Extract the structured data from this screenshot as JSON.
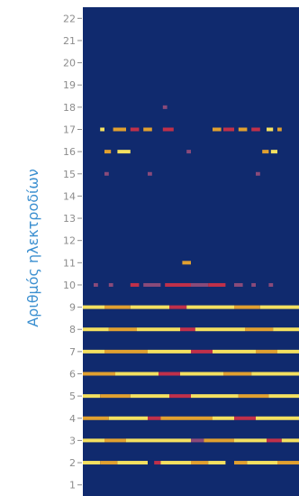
{
  "chart_data": {
    "type": "heatmap",
    "ylabel": "Αριθμός ηλεκτροδίων",
    "xlabel": "",
    "title": "",
    "yticks": [
      1,
      2,
      3,
      4,
      5,
      6,
      7,
      8,
      9,
      10,
      11,
      12,
      13,
      14,
      15,
      16,
      17,
      18,
      19,
      20,
      21,
      22
    ],
    "ylim": [
      0.5,
      22.5
    ],
    "xlim": [
      0,
      1
    ],
    "grid": false,
    "colors": {
      "background": "#102a6e",
      "axis_line": "#8c8c8c",
      "levels": [
        "#3b5aa8",
        "#8a4a7a",
        "#c0304a",
        "#e0a030",
        "#f4e060"
      ]
    },
    "rows": [
      {
        "electrode": 1,
        "segments": []
      },
      {
        "electrode": 2,
        "segments": [
          [
            0.0,
            0.08,
            4
          ],
          [
            0.08,
            0.16,
            3
          ],
          [
            0.16,
            0.3,
            4
          ],
          [
            0.33,
            0.36,
            2
          ],
          [
            0.36,
            0.5,
            4
          ],
          [
            0.5,
            0.58,
            3
          ],
          [
            0.58,
            0.66,
            4
          ],
          [
            0.7,
            0.76,
            3
          ],
          [
            0.76,
            0.9,
            4
          ],
          [
            0.9,
            1.0,
            3
          ]
        ]
      },
      {
        "electrode": 3,
        "segments": [
          [
            0.0,
            0.1,
            4
          ],
          [
            0.1,
            0.2,
            3
          ],
          [
            0.2,
            0.5,
            4
          ],
          [
            0.5,
            0.56,
            1
          ],
          [
            0.56,
            0.7,
            3
          ],
          [
            0.7,
            0.85,
            4
          ],
          [
            0.85,
            0.92,
            2
          ],
          [
            0.92,
            1.0,
            4
          ]
        ]
      },
      {
        "electrode": 4,
        "segments": [
          [
            0.0,
            0.12,
            3
          ],
          [
            0.12,
            0.3,
            4
          ],
          [
            0.3,
            0.36,
            2
          ],
          [
            0.36,
            0.6,
            3
          ],
          [
            0.6,
            0.7,
            4
          ],
          [
            0.7,
            0.8,
            2
          ],
          [
            0.8,
            1.0,
            4
          ]
        ]
      },
      {
        "electrode": 5,
        "segments": [
          [
            0.0,
            0.08,
            4
          ],
          [
            0.08,
            0.22,
            3
          ],
          [
            0.22,
            0.4,
            4
          ],
          [
            0.4,
            0.5,
            2
          ],
          [
            0.5,
            0.72,
            4
          ],
          [
            0.72,
            0.86,
            3
          ],
          [
            0.86,
            1.0,
            4
          ]
        ]
      },
      {
        "electrode": 6,
        "segments": [
          [
            0.0,
            0.15,
            3
          ],
          [
            0.15,
            0.35,
            4
          ],
          [
            0.35,
            0.45,
            2
          ],
          [
            0.45,
            0.65,
            4
          ],
          [
            0.65,
            0.78,
            3
          ],
          [
            0.78,
            1.0,
            4
          ]
        ]
      },
      {
        "electrode": 7,
        "segments": [
          [
            0.0,
            0.1,
            4
          ],
          [
            0.1,
            0.3,
            3
          ],
          [
            0.3,
            0.5,
            4
          ],
          [
            0.5,
            0.6,
            2
          ],
          [
            0.6,
            0.8,
            4
          ],
          [
            0.8,
            0.9,
            3
          ],
          [
            0.9,
            1.0,
            4
          ]
        ]
      },
      {
        "electrode": 8,
        "segments": [
          [
            0.0,
            0.12,
            4
          ],
          [
            0.12,
            0.25,
            3
          ],
          [
            0.25,
            0.45,
            4
          ],
          [
            0.45,
            0.52,
            2
          ],
          [
            0.52,
            0.75,
            4
          ],
          [
            0.75,
            0.88,
            3
          ],
          [
            0.88,
            1.0,
            4
          ]
        ]
      },
      {
        "electrode": 9,
        "segments": [
          [
            0.0,
            0.1,
            4
          ],
          [
            0.1,
            0.22,
            3
          ],
          [
            0.22,
            0.4,
            4
          ],
          [
            0.4,
            0.48,
            2
          ],
          [
            0.48,
            0.7,
            4
          ],
          [
            0.7,
            0.82,
            3
          ],
          [
            0.82,
            1.0,
            4
          ]
        ]
      },
      {
        "electrode": 10,
        "segments": [
          [
            0.05,
            0.07,
            1
          ],
          [
            0.12,
            0.14,
            1
          ],
          [
            0.22,
            0.26,
            2
          ],
          [
            0.28,
            0.36,
            1
          ],
          [
            0.38,
            0.5,
            2
          ],
          [
            0.5,
            0.58,
            1
          ],
          [
            0.58,
            0.66,
            2
          ],
          [
            0.7,
            0.74,
            1
          ],
          [
            0.78,
            0.8,
            1
          ],
          [
            0.86,
            0.88,
            1
          ]
        ]
      },
      {
        "electrode": 11,
        "segments": [
          [
            0.46,
            0.5,
            3
          ]
        ]
      },
      {
        "electrode": 12,
        "segments": []
      },
      {
        "electrode": 13,
        "segments": []
      },
      {
        "electrode": 14,
        "segments": []
      },
      {
        "electrode": 15,
        "segments": [
          [
            0.1,
            0.12,
            1
          ],
          [
            0.3,
            0.32,
            1
          ],
          [
            0.8,
            0.82,
            1
          ]
        ]
      },
      {
        "electrode": 16,
        "segments": [
          [
            0.1,
            0.13,
            3
          ],
          [
            0.16,
            0.22,
            4
          ],
          [
            0.48,
            0.5,
            1
          ],
          [
            0.83,
            0.86,
            3
          ],
          [
            0.87,
            0.9,
            4
          ]
        ]
      },
      {
        "electrode": 17,
        "segments": [
          [
            0.08,
            0.1,
            4
          ],
          [
            0.14,
            0.2,
            3
          ],
          [
            0.22,
            0.26,
            2
          ],
          [
            0.28,
            0.32,
            3
          ],
          [
            0.37,
            0.42,
            2
          ],
          [
            0.6,
            0.64,
            3
          ],
          [
            0.65,
            0.7,
            2
          ],
          [
            0.72,
            0.76,
            3
          ],
          [
            0.78,
            0.82,
            2
          ],
          [
            0.85,
            0.88,
            4
          ],
          [
            0.9,
            0.92,
            3
          ]
        ]
      },
      {
        "electrode": 18,
        "segments": [
          [
            0.37,
            0.39,
            1
          ]
        ]
      },
      {
        "electrode": 19,
        "segments": []
      },
      {
        "electrode": 20,
        "segments": []
      },
      {
        "electrode": 21,
        "segments": []
      },
      {
        "electrode": 22,
        "segments": []
      }
    ]
  }
}
